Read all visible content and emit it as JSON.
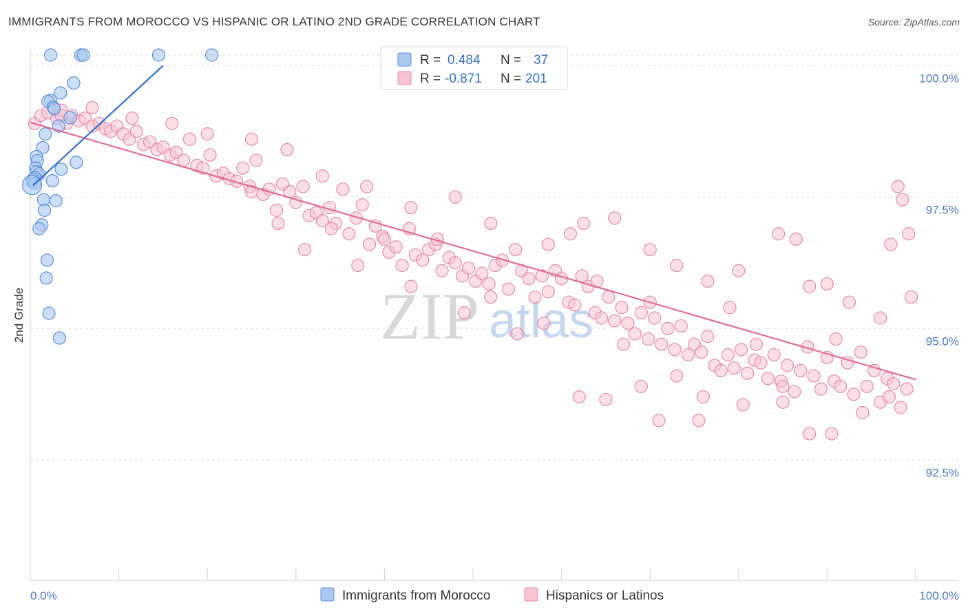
{
  "header": {
    "title": "IMMIGRANTS FROM MOROCCO VS HISPANIC OR LATINO 2ND GRADE CORRELATION CHART",
    "source": "Source: ZipAtlas.com"
  },
  "watermark": {
    "zip": "ZIP",
    "atlas": "atlas"
  },
  "legend": {
    "row1": {
      "r_label": "R =",
      "r_value": "0.484",
      "n_label": "N =",
      "n_value": "37"
    },
    "row2": {
      "r_label": "R =",
      "r_value": "-0.871",
      "n_label": "N =",
      "n_value": "201"
    }
  },
  "colors": {
    "blue_fill": "#aac8f0",
    "blue_stroke": "#5a8fd8",
    "blue_line": "#2f6fcf",
    "pink_fill": "#f6c4d3",
    "pink_stroke": "#e58aa8",
    "pink_line": "#e06b94",
    "grid": "#e2e2e2",
    "tick_text": "#4a78c5"
  },
  "chart_data": {
    "type": "scatter",
    "title": "IMMIGRANTS FROM MOROCCO VS HISPANIC OR LATINO 2ND GRADE CORRELATION CHART",
    "xlabel": "",
    "ylabel": "2nd Grade",
    "xlim": [
      0,
      100
    ],
    "ylim": [
      90.2,
      100.2
    ],
    "x_tick_labels": [
      "0.0%",
      "100.0%"
    ],
    "y_ticks": [
      {
        "value": 100.0,
        "label": "100.0%"
      },
      {
        "value": 97.5,
        "label": "97.5%"
      },
      {
        "value": 95.0,
        "label": "95.0%"
      },
      {
        "value": 92.5,
        "label": "92.5%"
      }
    ],
    "series": [
      {
        "name": "Immigrants from Morocco",
        "color": "blue",
        "r": 0.484,
        "n": 37,
        "trend": {
          "x": [
            0.3,
            15.0
          ],
          "y": [
            97.72,
            100.0
          ]
        },
        "points": [
          [
            2.3,
            100.2
          ],
          [
            5.7,
            100.2
          ],
          [
            6.0,
            100.2
          ],
          [
            14.5,
            100.2
          ],
          [
            20.5,
            100.2
          ],
          [
            4.9,
            99.67
          ],
          [
            3.4,
            99.48
          ],
          [
            2.3,
            99.34
          ],
          [
            2.0,
            99.32
          ],
          [
            2.6,
            99.21
          ],
          [
            2.7,
            99.18
          ],
          [
            4.5,
            99.01
          ],
          [
            3.2,
            98.85
          ],
          [
            1.7,
            98.7
          ],
          [
            1.4,
            98.44
          ],
          [
            0.7,
            98.27
          ],
          [
            0.8,
            98.19
          ],
          [
            5.2,
            98.16
          ],
          [
            0.6,
            98.05
          ],
          [
            3.5,
            98.03
          ],
          [
            0.7,
            97.98
          ],
          [
            1.0,
            97.94
          ],
          [
            0.5,
            97.87
          ],
          [
            0.3,
            97.84
          ],
          [
            2.5,
            97.81
          ],
          [
            0.2,
            97.8
          ],
          [
            0.5,
            97.76
          ],
          [
            0.2,
            97.73
          ],
          [
            1.5,
            97.45
          ],
          [
            2.9,
            97.43
          ],
          [
            1.6,
            97.25
          ],
          [
            1.3,
            96.97
          ],
          [
            1.0,
            96.9
          ],
          [
            1.9,
            96.3
          ],
          [
            1.8,
            95.96
          ],
          [
            2.1,
            95.29
          ],
          [
            3.3,
            94.82
          ]
        ]
      },
      {
        "name": "Hispanics or Latinos",
        "color": "pink",
        "r": -0.871,
        "n": 201,
        "trend": {
          "x": [
            0.0,
            100.0
          ],
          "y": [
            98.92,
            94.03
          ]
        },
        "points": [
          [
            0.5,
            98.9
          ],
          [
            1.2,
            99.05
          ],
          [
            2.0,
            99.1
          ],
          [
            3.0,
            99.0
          ],
          [
            3.5,
            99.15
          ],
          [
            4.1,
            98.9
          ],
          [
            4.7,
            99.05
          ],
          [
            5.5,
            98.95
          ],
          [
            6.2,
            99.0
          ],
          [
            7.0,
            98.85
          ],
          [
            7.8,
            98.9
          ],
          [
            8.5,
            98.8
          ],
          [
            9.1,
            98.75
          ],
          [
            9.8,
            98.85
          ],
          [
            10.5,
            98.7
          ],
          [
            11.2,
            98.6
          ],
          [
            12.0,
            98.75
          ],
          [
            12.8,
            98.5
          ],
          [
            13.5,
            98.55
          ],
          [
            14.3,
            98.4
          ],
          [
            15.0,
            98.45
          ],
          [
            15.8,
            98.3
          ],
          [
            16.5,
            98.35
          ],
          [
            17.3,
            98.2
          ],
          [
            18.0,
            98.6
          ],
          [
            18.8,
            98.1
          ],
          [
            19.5,
            98.05
          ],
          [
            20.3,
            98.3
          ],
          [
            21.0,
            97.9
          ],
          [
            21.8,
            97.95
          ],
          [
            22.5,
            97.85
          ],
          [
            23.3,
            97.8
          ],
          [
            24.0,
            98.05
          ],
          [
            24.8,
            97.7
          ],
          [
            25.5,
            98.2
          ],
          [
            26.3,
            97.55
          ],
          [
            27.0,
            97.65
          ],
          [
            27.8,
            97.25
          ],
          [
            28.5,
            97.75
          ],
          [
            29.3,
            97.6
          ],
          [
            30.0,
            97.4
          ],
          [
            30.8,
            97.7
          ],
          [
            31.5,
            97.15
          ],
          [
            32.3,
            97.2
          ],
          [
            33.0,
            97.05
          ],
          [
            33.8,
            97.3
          ],
          [
            34.5,
            97.0
          ],
          [
            35.3,
            97.65
          ],
          [
            36.0,
            96.8
          ],
          [
            36.8,
            97.1
          ],
          [
            37.5,
            97.35
          ],
          [
            38.3,
            96.6
          ],
          [
            39.0,
            96.95
          ],
          [
            39.8,
            96.75
          ],
          [
            40.5,
            96.45
          ],
          [
            41.3,
            96.55
          ],
          [
            42.0,
            96.2
          ],
          [
            42.8,
            96.9
          ],
          [
            43.5,
            96.4
          ],
          [
            44.3,
            96.3
          ],
          [
            45.0,
            96.5
          ],
          [
            45.8,
            96.6
          ],
          [
            46.5,
            96.1
          ],
          [
            47.3,
            96.35
          ],
          [
            48.0,
            96.25
          ],
          [
            48.8,
            96.0
          ],
          [
            49.5,
            96.15
          ],
          [
            50.3,
            95.9
          ],
          [
            51.0,
            96.05
          ],
          [
            51.8,
            95.85
          ],
          [
            52.5,
            96.2
          ],
          [
            53.3,
            96.3
          ],
          [
            54.0,
            95.75
          ],
          [
            54.8,
            96.5
          ],
          [
            55.5,
            96.1
          ],
          [
            56.3,
            95.95
          ],
          [
            57.0,
            95.6
          ],
          [
            57.8,
            96.0
          ],
          [
            58.5,
            95.7
          ],
          [
            59.3,
            96.1
          ],
          [
            60.0,
            95.95
          ],
          [
            60.8,
            95.5
          ],
          [
            61.5,
            95.45
          ],
          [
            62.3,
            96.0
          ],
          [
            63.0,
            95.8
          ],
          [
            63.8,
            95.3
          ],
          [
            64.5,
            95.2
          ],
          [
            65.3,
            95.6
          ],
          [
            66.0,
            95.15
          ],
          [
            66.8,
            95.4
          ],
          [
            67.5,
            95.1
          ],
          [
            68.3,
            94.9
          ],
          [
            69.0,
            95.3
          ],
          [
            69.8,
            94.8
          ],
          [
            70.5,
            95.2
          ],
          [
            71.3,
            94.7
          ],
          [
            72.0,
            95.0
          ],
          [
            72.8,
            94.6
          ],
          [
            73.5,
            95.05
          ],
          [
            74.3,
            94.5
          ],
          [
            75.0,
            94.7
          ],
          [
            75.8,
            94.55
          ],
          [
            76.5,
            94.85
          ],
          [
            77.3,
            94.3
          ],
          [
            78.0,
            94.2
          ],
          [
            78.8,
            94.5
          ],
          [
            79.5,
            94.25
          ],
          [
            80.3,
            94.6
          ],
          [
            81.0,
            94.15
          ],
          [
            81.8,
            94.4
          ],
          [
            82.5,
            94.35
          ],
          [
            83.3,
            94.05
          ],
          [
            84.0,
            94.5
          ],
          [
            84.8,
            94.0
          ],
          [
            85.5,
            94.3
          ],
          [
            86.3,
            93.8
          ],
          [
            87.0,
            94.2
          ],
          [
            87.8,
            94.65
          ],
          [
            88.5,
            94.1
          ],
          [
            89.3,
            93.85
          ],
          [
            90.0,
            94.45
          ],
          [
            90.8,
            94.0
          ],
          [
            91.5,
            93.9
          ],
          [
            92.3,
            94.35
          ],
          [
            93.0,
            93.75
          ],
          [
            93.8,
            94.55
          ],
          [
            94.5,
            93.9
          ],
          [
            95.3,
            94.2
          ],
          [
            96.0,
            93.6
          ],
          [
            96.8,
            94.05
          ],
          [
            97.5,
            93.95
          ],
          [
            98.3,
            93.5
          ],
          [
            99.0,
            93.85
          ],
          [
            25.0,
            97.6
          ],
          [
            28.0,
            97.0
          ],
          [
            31.0,
            96.5
          ],
          [
            34.0,
            96.9
          ],
          [
            37.0,
            96.2
          ],
          [
            40.0,
            96.7
          ],
          [
            43.0,
            95.8
          ],
          [
            46.0,
            96.7
          ],
          [
            49.0,
            95.3
          ],
          [
            52.0,
            95.6
          ],
          [
            55.0,
            94.9
          ],
          [
            58.0,
            95.1
          ],
          [
            61.0,
            96.8
          ],
          [
            64.0,
            95.9
          ],
          [
            67.0,
            94.7
          ],
          [
            70.0,
            95.5
          ],
          [
            73.0,
            94.1
          ],
          [
            76.0,
            93.7
          ],
          [
            79.0,
            95.4
          ],
          [
            82.0,
            94.7
          ],
          [
            85.0,
            93.6
          ],
          [
            88.0,
            95.8
          ],
          [
            91.0,
            94.8
          ],
          [
            94.0,
            93.4
          ],
          [
            97.0,
            93.7
          ],
          [
            99.5,
            95.6
          ],
          [
            98.0,
            97.7
          ],
          [
            99.2,
            96.8
          ],
          [
            97.2,
            96.6
          ],
          [
            98.5,
            97.45
          ],
          [
            96.0,
            95.2
          ],
          [
            92.5,
            95.5
          ],
          [
            90.0,
            95.85
          ],
          [
            86.5,
            96.7
          ],
          [
            84.5,
            96.8
          ],
          [
            80.0,
            96.1
          ],
          [
            76.5,
            95.9
          ],
          [
            73.0,
            96.2
          ],
          [
            70.0,
            96.5
          ],
          [
            66.0,
            97.1
          ],
          [
            62.5,
            97.0
          ],
          [
            58.5,
            96.6
          ],
          [
            52.0,
            97.0
          ],
          [
            48.0,
            97.5
          ],
          [
            43.0,
            97.3
          ],
          [
            38.0,
            97.7
          ],
          [
            33.0,
            97.9
          ],
          [
            29.0,
            98.4
          ],
          [
            25.0,
            98.6
          ],
          [
            20.0,
            98.7
          ],
          [
            16.0,
            98.9
          ],
          [
            11.5,
            99.0
          ],
          [
            7.0,
            99.2
          ],
          [
            3.5,
            99.05
          ],
          [
            88.0,
            93.0
          ],
          [
            90.5,
            93.0
          ],
          [
            71.0,
            93.25
          ],
          [
            75.5,
            93.25
          ],
          [
            80.5,
            93.55
          ],
          [
            85.0,
            93.9
          ],
          [
            65.0,
            93.65
          ],
          [
            69.0,
            93.9
          ],
          [
            62.0,
            93.7
          ]
        ]
      }
    ],
    "legend_entries": [
      "Immigrants from Morocco",
      "Hispanics or Latinos"
    ]
  },
  "bottom_legend": {
    "item1": "Immigrants from Morocco",
    "item2": "Hispanics or Latinos"
  }
}
